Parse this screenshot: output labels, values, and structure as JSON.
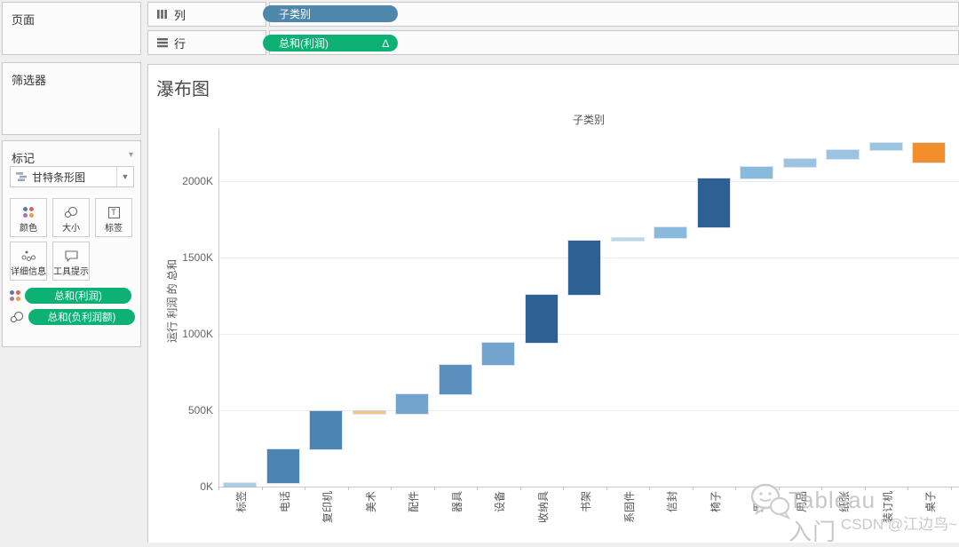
{
  "shelves": {
    "columns_label": "列",
    "rows_label": "行",
    "columns_pill": "子类别",
    "rows_pill": "总和(利润)",
    "rows_pill_badge": "∆"
  },
  "panels": {
    "pages_label": "页面",
    "filters_label": "筛选器",
    "marks": {
      "title": "标记",
      "mark_type": "甘特条形图",
      "buttons": [
        "颜色",
        "大小",
        "标签",
        "详细信息",
        "工具提示"
      ],
      "pills": [
        {
          "icon": "color-dots-icon",
          "label": "总和(利润)"
        },
        {
          "icon": "size-circles-icon",
          "label": "总和(负利润额)"
        }
      ]
    }
  },
  "chart_data": {
    "type": "bar",
    "subtype": "waterfall-gantt",
    "title": "瀑布图",
    "column_field_label": "子类别",
    "y_axis_title": "运行 利润 的 总和",
    "y_tick_labels": [
      "0K",
      "500K",
      "1000K",
      "1500K",
      "2000K"
    ],
    "y_tick_values_K": [
      0,
      500,
      1000,
      1500,
      2000
    ],
    "ylim_K": [
      0,
      2340
    ],
    "grid": "horizontal",
    "categories": [
      "标签",
      "电话",
      "复印机",
      "美术",
      "配件",
      "器具",
      "设备",
      "收纳具",
      "书架",
      "系固件",
      "信封",
      "椅子",
      "用具",
      "用品",
      "纸张",
      "装订机",
      "桌子"
    ],
    "series": [
      {
        "category": "标签",
        "start_K": 0,
        "end_K": 25,
        "profit_K": 25,
        "color": "#a8cfe4"
      },
      {
        "category": "电话",
        "start_K": 25,
        "end_K": 244,
        "profit_K": 219,
        "color": "#4c84b2"
      },
      {
        "category": "复印机",
        "start_K": 244,
        "end_K": 496,
        "profit_K": 252,
        "color": "#4c84b2"
      },
      {
        "category": "美术",
        "start_K": 496,
        "end_K": 474,
        "profit_K": -22,
        "color": "#f3c488"
      },
      {
        "category": "配件",
        "start_K": 474,
        "end_K": 603,
        "profit_K": 129,
        "color": "#74a4cd"
      },
      {
        "category": "器具",
        "start_K": 603,
        "end_K": 795,
        "profit_K": 192,
        "color": "#5b8fbe"
      },
      {
        "category": "设备",
        "start_K": 795,
        "end_K": 944,
        "profit_K": 149,
        "color": "#74a4cd"
      },
      {
        "category": "收纳具",
        "start_K": 944,
        "end_K": 1254,
        "profit_K": 310,
        "color": "#2d6093"
      },
      {
        "category": "书架",
        "start_K": 1254,
        "end_K": 1610,
        "profit_K": 356,
        "color": "#2d6093"
      },
      {
        "category": "系固件",
        "start_K": 1610,
        "end_K": 1626,
        "profit_K": 16,
        "color": "#bad8e8"
      },
      {
        "category": "信封",
        "start_K": 1626,
        "end_K": 1698,
        "profit_K": 72,
        "color": "#8abadb"
      },
      {
        "category": "椅子",
        "start_K": 1698,
        "end_K": 2017,
        "profit_K": 319,
        "color": "#2d6093"
      },
      {
        "category": "用具",
        "start_K": 2017,
        "end_K": 2093,
        "profit_K": 76,
        "color": "#8abadb"
      },
      {
        "category": "用品",
        "start_K": 2093,
        "end_K": 2145,
        "profit_K": 52,
        "color": "#9ac4e0"
      },
      {
        "category": "纸张",
        "start_K": 2145,
        "end_K": 2204,
        "profit_K": 59,
        "color": "#9ac4e0"
      },
      {
        "category": "装订机",
        "start_K": 2204,
        "end_K": 2248,
        "profit_K": 44,
        "color": "#9ac4e0"
      },
      {
        "category": "桌子",
        "start_K": 2248,
        "end_K": 2120,
        "profit_K": -128,
        "color": "#f28e2b"
      }
    ]
  },
  "watermark": {
    "line1": "Tableau入门",
    "line2": "CSDN @江边鸟~"
  },
  "colors": {
    "dimension_pill": "#4e86ac",
    "measure_pill": "#0db176",
    "positive_large": "#2d6093",
    "negative_large": "#f28e2b",
    "negative_small": "#f3c488"
  }
}
